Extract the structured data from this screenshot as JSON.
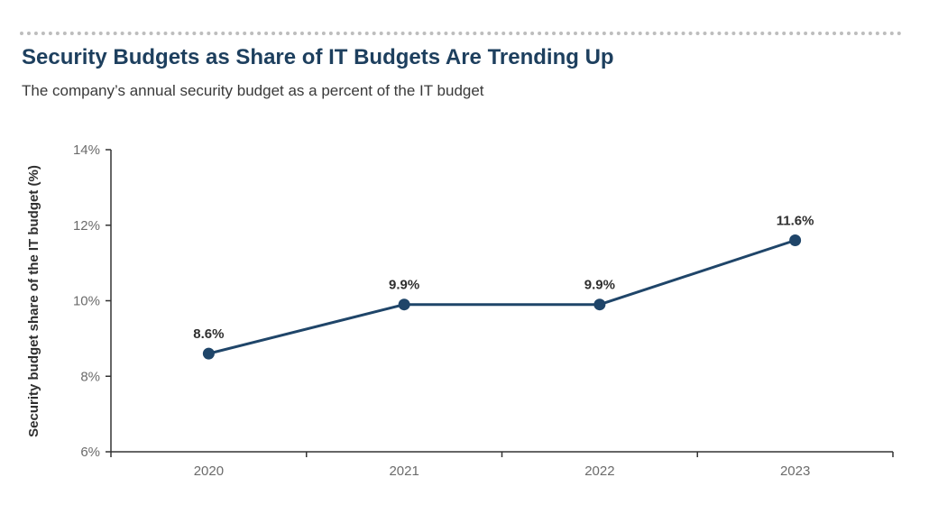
{
  "chart_data": {
    "type": "line",
    "title": "Security Budgets as Share of IT Budgets Are Trending Up",
    "subtitle": "The company’s annual security budget as a percent of the IT budget",
    "xlabel": "",
    "ylabel": "Security budget share of the IT budget (%)",
    "categories": [
      "2020",
      "2021",
      "2022",
      "2023"
    ],
    "series": [
      {
        "values": [
          8.6,
          9.9,
          9.9,
          11.6
        ],
        "data_labels": [
          "8.6%",
          "9.9%",
          "9.9%",
          "11.6%"
        ],
        "color": "#1f4569"
      }
    ],
    "ylim": [
      6,
      14
    ],
    "yticks": [
      6,
      8,
      10,
      12,
      14
    ],
    "ytick_labels": [
      "6%",
      "8%",
      "10%",
      "12%",
      "14%"
    ],
    "grid": false,
    "legend": "none"
  }
}
